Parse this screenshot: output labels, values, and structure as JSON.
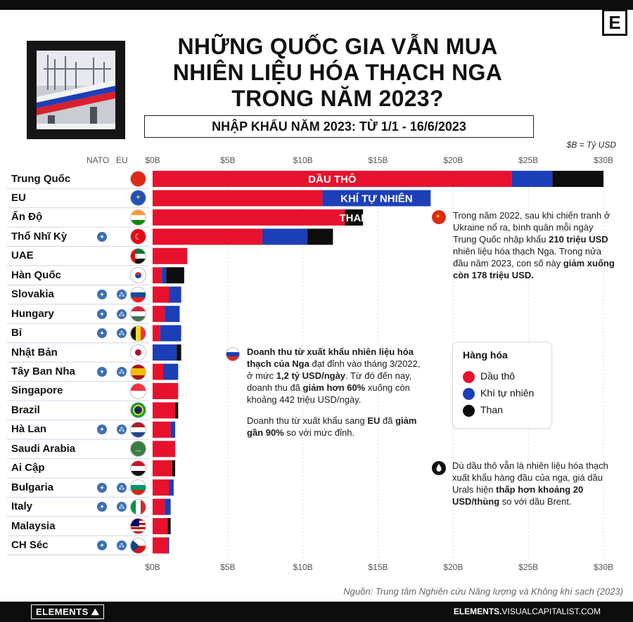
{
  "header": {
    "title_lines": [
      "NHỮNG QUỐC GIA VẪN MUA",
      "NHIÊN LIỆU HÓA THẠCH NGA",
      "TRONG NĂM 2023?"
    ],
    "subtitle": "NHẬP KHẨU NĂM 2023: TỪ 1/1 - 16/6/2023",
    "unit_note": "$B = Tỷ USD",
    "logo_letter": "E"
  },
  "columns": {
    "nato": "NATO",
    "eu": "EU"
  },
  "chart_data": {
    "type": "bar",
    "orientation": "horizontal",
    "stacked": true,
    "xlim": [
      0,
      30
    ],
    "ticks": [
      "$0B",
      "$5B",
      "$10B",
      "$15B",
      "$20B",
      "$25B",
      "$30B"
    ],
    "tick_values": [
      0,
      5,
      10,
      15,
      20,
      25,
      30
    ],
    "categories": [
      "Trung Quốc",
      "EU",
      "Ấn Độ",
      "Thổ Nhĩ Kỳ",
      "UAE",
      "Hàn Quốc",
      "Slovakia",
      "Hungary",
      "Bỉ",
      "Nhật Bản",
      "Tây Ban Nha",
      "Singapore",
      "Brazil",
      "Hà Lan",
      "Saudi Arabia",
      "Ai Cập",
      "Bulgaria",
      "Italy",
      "Malaysia",
      "CH Séc"
    ],
    "series": [
      {
        "name": "Dầu thô",
        "color": "#e8112d",
        "values": [
          23.9,
          11.3,
          12.8,
          7.3,
          2.3,
          0.6,
          1.1,
          0.8,
          0.5,
          0.0,
          0.7,
          1.7,
          1.5,
          1.2,
          1.5,
          1.3,
          1.1,
          0.8,
          1.0,
          1.0
        ]
      },
      {
        "name": "Khí tự nhiên",
        "color": "#1c3fb8",
        "values": [
          2.7,
          7.2,
          0.0,
          3.0,
          0.0,
          0.3,
          0.8,
          1.0,
          1.4,
          1.6,
          1.0,
          0.0,
          0.0,
          0.3,
          0.0,
          0.0,
          0.3,
          0.4,
          0.0,
          0.1
        ]
      },
      {
        "name": "Than",
        "color": "#0d0d0d",
        "values": [
          3.4,
          0.0,
          1.2,
          1.7,
          0.0,
          1.2,
          0.0,
          0.0,
          0.0,
          0.3,
          0.0,
          0.0,
          0.2,
          0.0,
          0.0,
          0.2,
          0.0,
          0.0,
          0.2,
          0.0
        ]
      }
    ],
    "bar_labels": [
      {
        "row": 0,
        "series": 0,
        "text": "DẦU THÔ"
      },
      {
        "row": 1,
        "series": 1,
        "text": "KHÍ TỰ NHIÊN"
      },
      {
        "row": 2,
        "series": 2,
        "text": "THAN"
      }
    ],
    "membership": {
      "nato": [
        false,
        false,
        false,
        true,
        false,
        false,
        true,
        true,
        true,
        false,
        true,
        false,
        false,
        true,
        false,
        false,
        true,
        true,
        false,
        true
      ],
      "eu": [
        false,
        false,
        false,
        false,
        false,
        false,
        true,
        true,
        true,
        false,
        true,
        false,
        false,
        true,
        false,
        false,
        true,
        true,
        false,
        true
      ]
    }
  },
  "legend": {
    "title": "Hàng hóa",
    "items": [
      {
        "label": "Dầu thô",
        "color": "#e8112d"
      },
      {
        "label": "Khí tự nhiên",
        "color": "#1c3fb8"
      },
      {
        "label": "Than",
        "color": "#0d0d0d"
      }
    ]
  },
  "notes": {
    "china": {
      "t1": "Trong năm 2022, sau khi chiến tranh ở Ukraine nổ ra, bình quân mỗi ngày Trung Quốc nhập khẩu ",
      "b1": "210 triệu USD",
      "t2": " nhiên liệu hóa thạch Nga. Trong nửa đầu năm 2023, con số này ",
      "b2": "giảm xuống còn 178 triệu USD."
    },
    "russia": {
      "b1": "Doanh thu từ xuất khẩu nhiên liệu hóa thạch của Nga",
      "t1": " đạt đỉnh vào tháng 3/2022, ở mức ",
      "b2": "1,2 tỷ USD/ngày",
      "t2": ". Từ đó đến nay, doanh thu đã ",
      "b3": "giảm hơn 60%",
      "t3": " xuống còn khoảng 442 triệu USD/ngày."
    },
    "russia_eu": {
      "t1": "Doanh thu từ xuất khẩu sang ",
      "b1": "EU",
      "t2": " đã ",
      "b2": "giảm gần 90%",
      "t3": " so với mức đỉnh."
    },
    "oil": {
      "t1": "Dù dầu thô vẫn là nhiên liệu hóa thạch xuất khẩu hàng đầu của nga, giá dầu Urals hiện ",
      "b1": "thấp hơn khoảng 20 USD/thùng",
      "t2": " so với dầu Brent."
    }
  },
  "footer": {
    "source": "Nguồn: Trung tâm Nghiên cứu Năng lượng và Không khí sạch (2023)",
    "brand": "ELEMENTS",
    "url_bold": "ELEMENTS.",
    "url_rest": "VISUALCAPITALIST.COM"
  }
}
